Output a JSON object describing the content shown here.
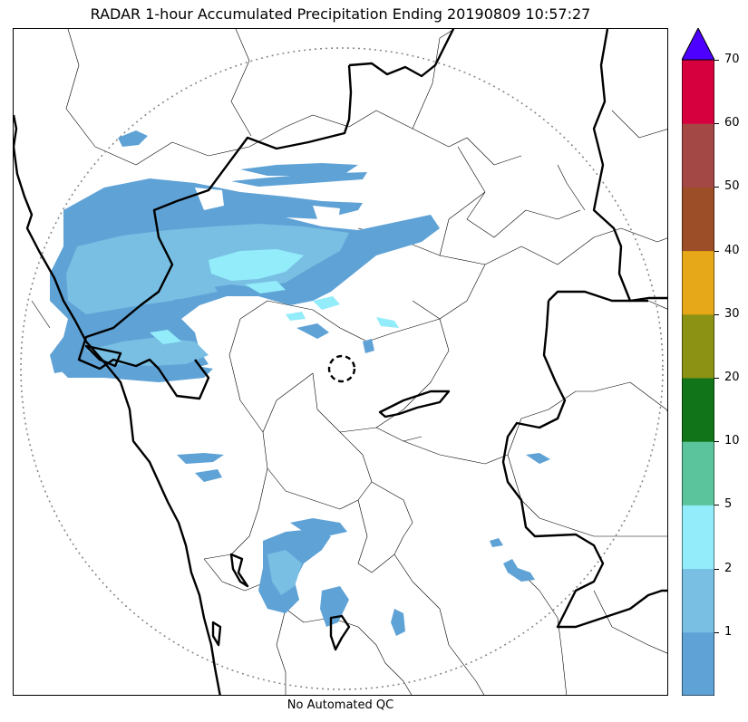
{
  "title": "RADAR 1-hour Accumulated Precipitation Ending 20190809 10:57:27",
  "footer_note": "No Automated QC",
  "colorbar": {
    "ticks": [
      "1",
      "2",
      "5",
      "10",
      "20",
      "30",
      "40",
      "50",
      "60",
      "70"
    ],
    "colors": [
      "#5fa2d6",
      "#78bfe3",
      "#92ecf9",
      "#5cc49c",
      "#117418",
      "#8c9213",
      "#e6a818",
      "#9b4e27",
      "#a34845",
      "#d5003d"
    ],
    "extend_color": "#4d00ff"
  },
  "map": {
    "precip_colors": {
      "light": "#5fa2d6",
      "medium": "#78bfe3",
      "heavy": "#92ecf9"
    },
    "radar_range_ring": "dotted-gray",
    "radar_site_marker": "dashed-circle",
    "coastline_color": "#000000"
  }
}
